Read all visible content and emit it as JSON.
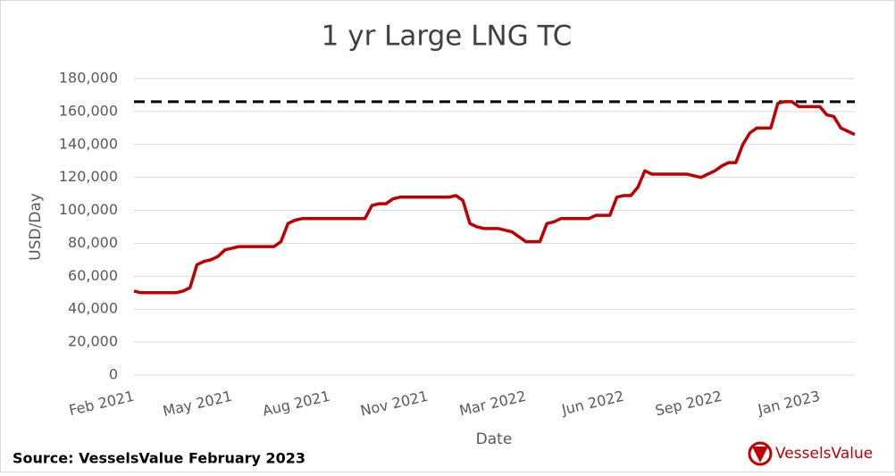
{
  "chart_data": {
    "type": "line",
    "title": "1 yr Large LNG TC",
    "x_label": "Date",
    "y_label": "USD/Day",
    "categories": [
      "Feb 2021",
      null,
      null,
      null,
      null,
      null,
      null,
      null,
      null,
      null,
      null,
      null,
      null,
      null,
      "May 2021",
      null,
      null,
      null,
      null,
      null,
      null,
      null,
      null,
      null,
      null,
      null,
      null,
      null,
      "Aug 2021",
      null,
      null,
      null,
      null,
      null,
      null,
      null,
      null,
      null,
      null,
      null,
      null,
      null,
      "Nov 2021",
      null,
      null,
      null,
      null,
      null,
      null,
      null,
      null,
      null,
      null,
      null,
      null,
      null,
      "Mar 2022",
      null,
      null,
      null,
      null,
      null,
      null,
      null,
      null,
      null,
      null,
      null,
      null,
      null,
      "Jun 2022",
      null,
      null,
      null,
      null,
      null,
      null,
      null,
      null,
      null,
      null,
      null,
      null,
      null,
      "Sep 2022",
      null,
      null,
      null,
      null,
      null,
      null,
      null,
      null,
      null,
      null,
      null,
      null,
      null,
      "Jan 2023",
      null,
      null,
      null,
      null,
      null
    ],
    "series": [
      {
        "name": "1 yr Large LNG TC",
        "color": "#c00000",
        "values": [
          51000,
          50000,
          50000,
          50000,
          50000,
          50000,
          50000,
          51000,
          53000,
          67000,
          69000,
          70000,
          72000,
          76000,
          77000,
          78000,
          78000,
          78000,
          78000,
          78000,
          78000,
          81000,
          92000,
          94000,
          95000,
          95000,
          95000,
          95000,
          95000,
          95000,
          95000,
          95000,
          95000,
          95000,
          103000,
          104000,
          104000,
          107000,
          108000,
          108000,
          108000,
          108000,
          108000,
          108000,
          108000,
          108000,
          109000,
          106000,
          92000,
          90000,
          89000,
          89000,
          89000,
          88000,
          87000,
          84000,
          81000,
          81000,
          81000,
          92000,
          93000,
          95000,
          95000,
          95000,
          95000,
          95000,
          97000,
          97000,
          97000,
          108000,
          109000,
          109000,
          114000,
          124000,
          122000,
          122000,
          122000,
          122000,
          122000,
          122000,
          121000,
          120000,
          122000,
          124000,
          127000,
          129000,
          129000,
          140000,
          147000,
          150000,
          150000,
          150000,
          165000,
          166000,
          166000,
          163000,
          163000,
          163000,
          163000,
          158000,
          157000,
          150000,
          148000,
          146000
        ]
      }
    ],
    "reference_line": {
      "value": 166000,
      "color": "#000000"
    },
    "ylim": [
      0,
      180000
    ],
    "yticks": [
      0,
      {
        "value": 20000,
        "label": "20,000"
      },
      {
        "value": 40000,
        "label": "40,000"
      },
      {
        "value": 60000,
        "label": "60,000"
      },
      {
        "value": 80000,
        "label": "80,000"
      },
      {
        "value": 100000,
        "label": "100,000"
      },
      {
        "value": 120000,
        "label": "120,000"
      },
      {
        "value": 140000,
        "label": "140,000"
      },
      {
        "value": 160000,
        "label": "160,000"
      },
      {
        "value": 180000,
        "label": "180,000"
      }
    ],
    "grid": true
  },
  "source": "Source: VesselsValue February 2023",
  "logo": "VesselsValue"
}
